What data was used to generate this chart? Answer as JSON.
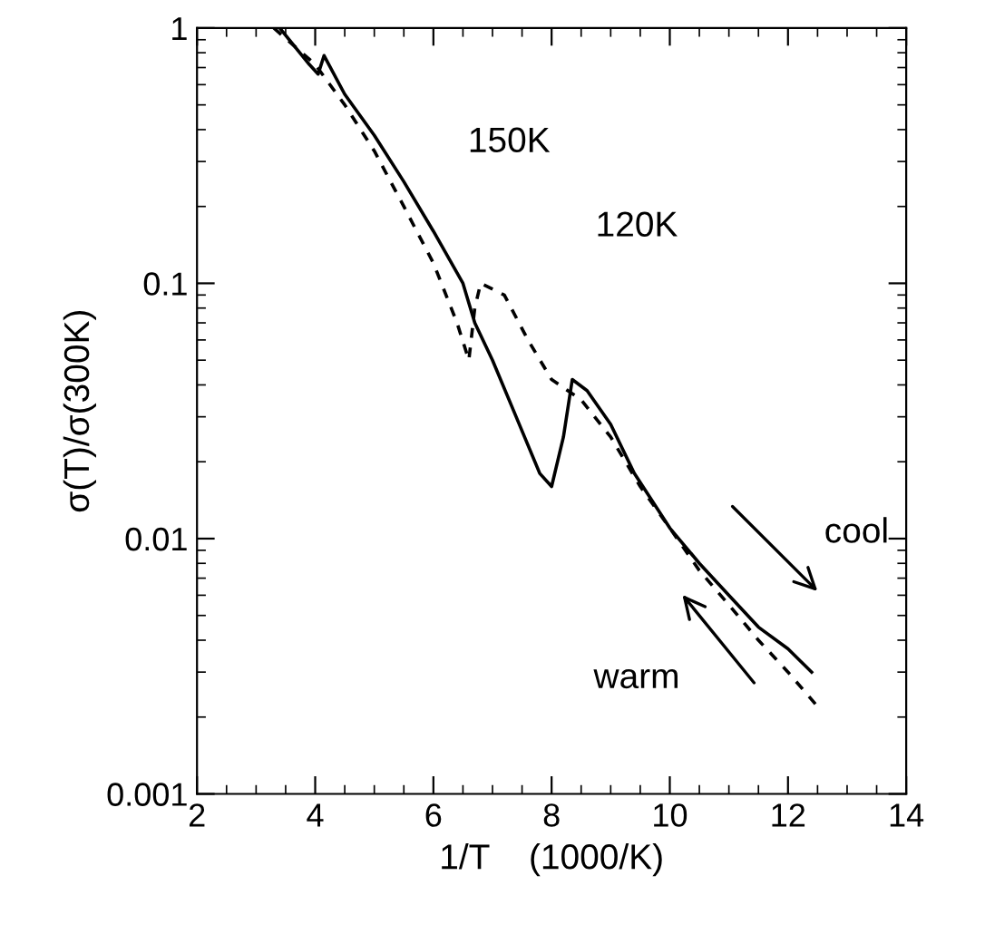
{
  "chart_data": {
    "type": "line",
    "xlabel": "1/T    (1000/K)",
    "ylabel": "σ(T)/σ(300K)",
    "log": "y",
    "xlim": [
      2,
      14
    ],
    "xticks": [
      2,
      4,
      6,
      8,
      10,
      12,
      14
    ],
    "ylim": [
      0.001,
      1
    ],
    "yticks": [
      {
        "value": 0.001,
        "label": "0.001"
      },
      {
        "value": 0.01,
        "label": "0.01"
      },
      {
        "value": 0.1,
        "label": "0.1"
      },
      {
        "value": 1,
        "label": "1"
      }
    ],
    "grid": false,
    "series": [
      {
        "color": "#000000",
        "line_style": "solid",
        "x": [
          3.4,
          3.9,
          4.05,
          4.15,
          4.5,
          5,
          5.5,
          6,
          6.5,
          6.7,
          7,
          7.4,
          7.8,
          8.0,
          8.2,
          8.35,
          8.6,
          9,
          9.4,
          10,
          10.5,
          11,
          11.5,
          12,
          12.4
        ],
        "values": [
          1.0,
          0.72,
          0.66,
          0.78,
          0.55,
          0.38,
          0.25,
          0.16,
          0.1,
          0.07,
          0.05,
          0.03,
          0.018,
          0.016,
          0.025,
          0.042,
          0.038,
          0.028,
          0.018,
          0.011,
          0.008,
          0.006,
          0.0045,
          0.0037,
          0.003
        ]
      },
      {
        "color": "#000000",
        "line_style": "dashed",
        "x": [
          3.3,
          4,
          4.5,
          5,
          5.5,
          6,
          6.4,
          6.6,
          6.7,
          6.8,
          7.2,
          7.6,
          8,
          8.5,
          9,
          9.5,
          10,
          10.5,
          11,
          11.5,
          12,
          12.5
        ],
        "values": [
          1.0,
          0.72,
          0.5,
          0.33,
          0.2,
          0.12,
          0.07,
          0.05,
          0.08,
          0.1,
          0.09,
          0.06,
          0.042,
          0.035,
          0.025,
          0.016,
          0.011,
          0.0075,
          0.0055,
          0.004,
          0.003,
          0.0022
        ]
      }
    ],
    "annotations": [
      "150K",
      "120K",
      "cool",
      "warm"
    ]
  }
}
